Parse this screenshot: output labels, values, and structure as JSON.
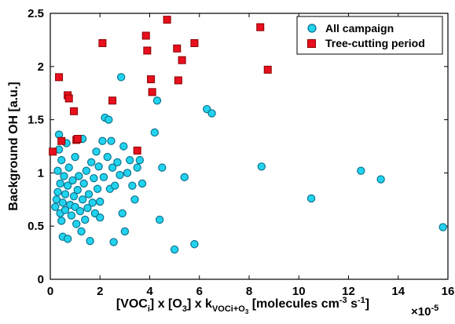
{
  "chart_data": {
    "type": "scatter",
    "xlabel": {
      "p1": "[VOC",
      "s1": "i",
      "p2": "] x [O",
      "s2": "3",
      "p3": "] x k",
      "s3": "VOCi+O",
      "s3s": "3",
      "p4": " [molecules cm",
      "e1": "-3",
      "p5": " s",
      "e2": "-1",
      "p6": "]"
    },
    "ylabel": "Background OH [a.u.]",
    "x_exponent": {
      "base": "×10",
      "exp": "-5"
    },
    "xlim": [
      0,
      16
    ],
    "ylim": [
      0,
      2.5
    ],
    "x_ticks": [
      "0",
      "2",
      "4",
      "6",
      "8",
      "10",
      "12",
      "14",
      "16"
    ],
    "y_ticks": [
      "0",
      "0.5",
      "1",
      "1.5",
      "2",
      "2.5"
    ],
    "legend_position": "top-right",
    "series": [
      {
        "name": "All campaign",
        "color": "#22d3ee",
        "marker": "circle",
        "points": [
          [
            0.2,
            0.68
          ],
          [
            0.25,
            0.75
          ],
          [
            0.3,
            0.82
          ],
          [
            0.3,
            1.02
          ],
          [
            0.35,
            1.22
          ],
          [
            0.35,
            1.36
          ],
          [
            0.4,
            0.62
          ],
          [
            0.4,
            0.9
          ],
          [
            0.45,
            0.55
          ],
          [
            0.45,
            1.12
          ],
          [
            0.5,
            0.72
          ],
          [
            0.5,
            0.4
          ],
          [
            0.55,
            0.97
          ],
          [
            0.6,
            0.65
          ],
          [
            0.6,
            0.8
          ],
          [
            0.65,
            1.28
          ],
          [
            0.7,
            0.38
          ],
          [
            0.7,
            0.88
          ],
          [
            0.75,
            1.05
          ],
          [
            0.8,
            0.7
          ],
          [
            0.85,
            0.6
          ],
          [
            0.9,
            0.93
          ],
          [
            0.95,
            0.78
          ],
          [
            1.0,
            0.68
          ],
          [
            1.0,
            1.15
          ],
          [
            1.05,
            0.52
          ],
          [
            1.1,
            0.84
          ],
          [
            1.15,
            0.97
          ],
          [
            1.2,
            0.64
          ],
          [
            1.25,
            0.45
          ],
          [
            1.3,
            0.75
          ],
          [
            1.3,
            1.32
          ],
          [
            1.35,
            0.9
          ],
          [
            1.4,
            0.56
          ],
          [
            1.45,
            1.02
          ],
          [
            1.5,
            0.67
          ],
          [
            1.55,
            0.8
          ],
          [
            1.6,
            0.36
          ],
          [
            1.65,
            1.1
          ],
          [
            1.7,
            0.72
          ],
          [
            1.75,
            0.95
          ],
          [
            1.8,
            0.62
          ],
          [
            1.85,
            1.2
          ],
          [
            1.9,
            0.85
          ],
          [
            1.95,
            1.06
          ],
          [
            2.0,
            0.73
          ],
          [
            2.0,
            0.58
          ],
          [
            2.1,
            1.3
          ],
          [
            2.15,
            0.96
          ],
          [
            2.2,
            1.52
          ],
          [
            2.3,
            1.15
          ],
          [
            2.35,
            1.5
          ],
          [
            2.4,
            0.85
          ],
          [
            2.45,
            1.3
          ],
          [
            2.5,
            1.05
          ],
          [
            2.55,
            0.35
          ],
          [
            2.6,
            0.88
          ],
          [
            2.7,
            1.1
          ],
          [
            2.8,
            0.98
          ],
          [
            2.85,
            1.9
          ],
          [
            2.9,
            0.62
          ],
          [
            2.95,
            1.25
          ],
          [
            3.0,
            0.45
          ],
          [
            3.1,
            1.0
          ],
          [
            3.2,
            1.12
          ],
          [
            3.3,
            0.88
          ],
          [
            3.4,
            0.75
          ],
          [
            3.5,
            1.05
          ],
          [
            3.6,
            1.12
          ],
          [
            3.7,
            0.9
          ],
          [
            4.2,
            1.38
          ],
          [
            4.3,
            1.68
          ],
          [
            4.4,
            0.56
          ],
          [
            4.5,
            1.05
          ],
          [
            5.0,
            0.28
          ],
          [
            5.4,
            0.96
          ],
          [
            5.8,
            0.33
          ],
          [
            6.3,
            1.6
          ],
          [
            6.5,
            1.56
          ],
          [
            8.5,
            1.06
          ],
          [
            10.5,
            0.76
          ],
          [
            12.5,
            1.02
          ],
          [
            13.3,
            0.94
          ],
          [
            15.8,
            0.49
          ]
        ]
      },
      {
        "name": "Tree-cutting period",
        "color": "#e8101e",
        "marker": "square",
        "points": [
          [
            0.1,
            1.2
          ],
          [
            0.35,
            1.9
          ],
          [
            0.45,
            1.3
          ],
          [
            0.7,
            1.73
          ],
          [
            0.75,
            1.7
          ],
          [
            0.95,
            1.58
          ],
          [
            1.05,
            1.31
          ],
          [
            1.1,
            1.32
          ],
          [
            2.1,
            2.22
          ],
          [
            2.5,
            1.68
          ],
          [
            3.5,
            1.21
          ],
          [
            3.85,
            2.29
          ],
          [
            3.9,
            2.15
          ],
          [
            4.05,
            1.88
          ],
          [
            4.1,
            1.76
          ],
          [
            4.7,
            2.44
          ],
          [
            5.1,
            2.17
          ],
          [
            5.15,
            1.87
          ],
          [
            5.3,
            2.06
          ],
          [
            5.8,
            2.22
          ],
          [
            8.45,
            2.37
          ],
          [
            8.75,
            1.97
          ]
        ]
      }
    ]
  }
}
